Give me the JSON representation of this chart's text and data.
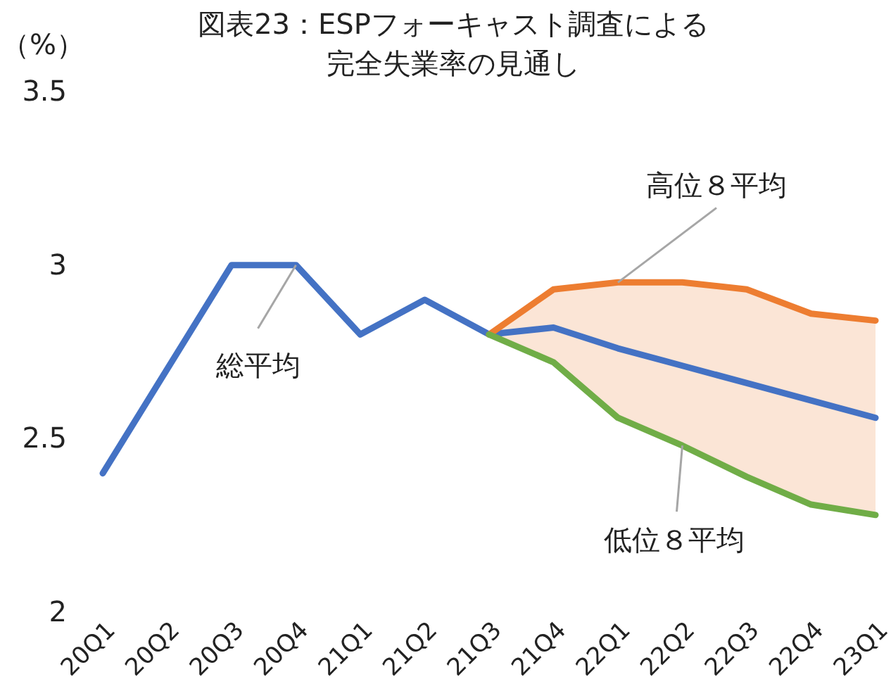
{
  "chart_data": {
    "type": "line",
    "title": "図表23：ESPフォーキャスト調査による完全失業率の見通し",
    "ylabel": "（%）",
    "categories": [
      "20Q1",
      "20Q2",
      "20Q3",
      "20Q4",
      "21Q1",
      "21Q2",
      "21Q3",
      "21Q4",
      "22Q1",
      "22Q2",
      "22Q3",
      "22Q4",
      "23Q1"
    ],
    "series": [
      {
        "name": "総平均",
        "color": "#4472c4",
        "values": [
          2.4,
          2.7,
          3.0,
          3.0,
          2.8,
          2.9,
          2.8,
          2.82,
          2.76,
          2.71,
          2.66,
          2.61,
          2.56
        ],
        "lower": [
          null,
          null,
          null,
          null,
          null,
          null,
          2.8,
          2.72,
          2.56,
          2.48,
          2.39,
          2.31,
          2.28
        ],
        "upper": [
          null,
          null,
          null,
          null,
          null,
          null,
          2.8,
          2.93,
          2.95,
          2.95,
          2.93,
          2.86,
          2.84
        ]
      },
      {
        "name": "高位８平均",
        "color": "#ed7d31",
        "values": [
          null,
          null,
          null,
          null,
          null,
          null,
          2.8,
          2.93,
          2.95,
          2.95,
          2.93,
          2.86,
          2.84
        ]
      },
      {
        "name": "低位８平均",
        "color": "#70ad47",
        "values": [
          null,
          null,
          null,
          null,
          null,
          null,
          2.8,
          2.72,
          2.56,
          2.48,
          2.39,
          2.31,
          2.28
        ]
      }
    ],
    "ylim": [
      2,
      3.5
    ],
    "yticks": [
      2,
      2.5,
      3,
      3.5
    ],
    "grid": false,
    "legend": false,
    "marker": "none",
    "line_style": "solid"
  }
}
